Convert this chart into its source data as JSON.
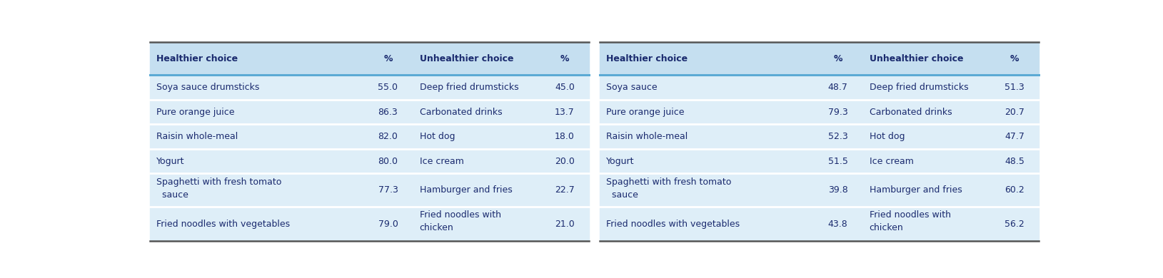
{
  "left_table": {
    "headers": [
      "Healthier choice",
      "%",
      "Unhealthier choice",
      "%"
    ],
    "rows": [
      [
        "Soya sauce drumsticks",
        "55.0",
        "Deep fried drumsticks",
        "45.0"
      ],
      [
        "Pure orange juice",
        "86.3",
        "Carbonated drinks",
        "13.7"
      ],
      [
        "Raisin whole-meal",
        "82.0",
        "Hot dog",
        "18.0"
      ],
      [
        "Yogurt",
        "80.0",
        "Ice cream",
        "20.0"
      ],
      [
        "Spaghetti with fresh tomato\n  sauce",
        "77.3",
        "Hamburger and fries",
        "22.7"
      ],
      [
        "Fried noodles with vegetables",
        "79.0",
        "Fried noodles with\nchicken",
        "21.0"
      ]
    ]
  },
  "right_table": {
    "headers": [
      "Healthier choice",
      "%",
      "Unhealthier choice",
      "%"
    ],
    "rows": [
      [
        "Soya sauce",
        "48.7",
        "Deep fried drumsticks",
        "51.3"
      ],
      [
        "Pure orange juice",
        "79.3",
        "Carbonated drinks",
        "20.7"
      ],
      [
        "Raisin whole-meal",
        "52.3",
        "Hot dog",
        "47.7"
      ],
      [
        "Yogurt",
        "51.5",
        "Ice cream",
        "48.5"
      ],
      [
        "Spaghetti with fresh tomato\n  sauce",
        "39.8",
        "Hamburger and fries",
        "60.2"
      ],
      [
        "Fried noodles with vegetables",
        "43.8",
        "Fried noodles with\nchicken",
        "56.2"
      ]
    ]
  },
  "header_bg": "#c5dff0",
  "row_bg": "#deeef8",
  "top_line_color": "#555555",
  "header_line_color": "#5baad4",
  "row_sep_color": "#ffffff",
  "header_text_color": "#1a2a6e",
  "body_text_color": "#1a2a6e",
  "font_size": 9.0,
  "header_font_size": 9.0
}
